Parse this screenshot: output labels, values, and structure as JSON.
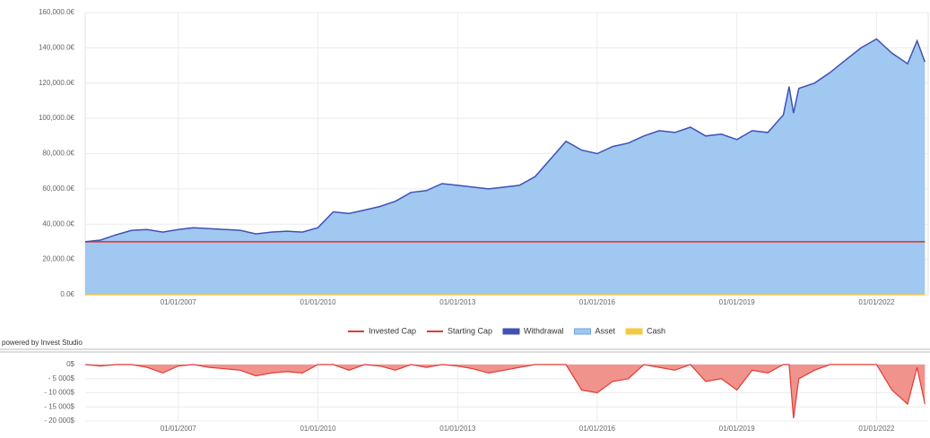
{
  "chart_data": [
    {
      "type": "area",
      "x": [
        "2005-01-01",
        "2005-05-01",
        "2005-09-01",
        "2006-01-01",
        "2006-05-01",
        "2006-09-01",
        "2007-01-01",
        "2007-05-01",
        "2007-09-01",
        "2008-01-01",
        "2008-05-01",
        "2008-09-01",
        "2009-01-01",
        "2009-05-01",
        "2009-09-01",
        "2010-01-01",
        "2010-05-01",
        "2010-09-01",
        "2011-01-01",
        "2011-05-01",
        "2011-09-01",
        "2012-01-01",
        "2012-05-01",
        "2012-09-01",
        "2013-01-01",
        "2013-05-01",
        "2013-09-01",
        "2014-01-01",
        "2014-05-01",
        "2014-09-01",
        "2015-01-01",
        "2015-05-01",
        "2015-09-01",
        "2016-01-01",
        "2016-05-01",
        "2016-09-01",
        "2017-01-01",
        "2017-05-01",
        "2017-09-01",
        "2018-01-01",
        "2018-05-01",
        "2018-09-01",
        "2019-01-01",
        "2019-05-01",
        "2019-09-01",
        "2020-01-01",
        "2020-02-15",
        "2020-03-20",
        "2020-05-01",
        "2020-09-01",
        "2021-01-01",
        "2021-05-01",
        "2021-09-01",
        "2022-01-01",
        "2022-05-01",
        "2022-09-01",
        "2022-11-15",
        "2023-01-15"
      ],
      "xlim": [
        "2005-01-01",
        "2023-02-10"
      ],
      "xticks": [
        {
          "value": "2007-01-01",
          "label": "01/01/2007"
        },
        {
          "value": "2010-01-01",
          "label": "01/01/2010"
        },
        {
          "value": "2013-01-01",
          "label": "01/01/2013"
        },
        {
          "value": "2016-01-01",
          "label": "01/01/2016"
        },
        {
          "value": "2019-01-01",
          "label": "01/01/2019"
        },
        {
          "value": "2022-01-01",
          "label": "01/01/2022"
        }
      ],
      "ylim": [
        0,
        160000
      ],
      "yticks": [
        {
          "value": 0,
          "label": "0.0€"
        },
        {
          "value": 20000,
          "label": "20,000.0€"
        },
        {
          "value": 40000,
          "label": "40,000.0€"
        },
        {
          "value": 60000,
          "label": "60,000.0€"
        },
        {
          "value": 80000,
          "label": "80,000.0€"
        },
        {
          "value": 100000,
          "label": "100,000.0€"
        },
        {
          "value": 120000,
          "label": "120,000.0€"
        },
        {
          "value": 140000,
          "label": "140,000.0€"
        },
        {
          "value": 160000,
          "label": "160,000.0€"
        }
      ],
      "grid": true,
      "legend": "bottom",
      "series": [
        {
          "name": "Invested Cap",
          "color": "#e53935",
          "mark": "line",
          "legend_symbol": "line",
          "values": [
            30000,
            30000,
            30000,
            30000,
            30000,
            30000,
            30000,
            30000,
            30000,
            30000,
            30000,
            30000,
            30000,
            30000,
            30000,
            30000,
            30000,
            30000,
            30000,
            30000,
            30000,
            30000,
            30000,
            30000,
            30000,
            30000,
            30000,
            30000,
            30000,
            30000,
            30000,
            30000,
            30000,
            30000,
            30000,
            30000,
            30000,
            30000,
            30000,
            30000,
            30000,
            30000,
            30000,
            30000,
            30000,
            30000,
            30000,
            30000,
            30000,
            30000,
            30000,
            30000,
            30000,
            30000,
            30000,
            30000,
            30000,
            30000
          ]
        },
        {
          "name": "Starting Cap",
          "color": "#e53935",
          "mark": "line",
          "legend_symbol": "line",
          "values": [
            30000,
            30000,
            30000,
            30000,
            30000,
            30000,
            30000,
            30000,
            30000,
            30000,
            30000,
            30000,
            30000,
            30000,
            30000,
            30000,
            30000,
            30000,
            30000,
            30000,
            30000,
            30000,
            30000,
            30000,
            30000,
            30000,
            30000,
            30000,
            30000,
            30000,
            30000,
            30000,
            30000,
            30000,
            30000,
            30000,
            30000,
            30000,
            30000,
            30000,
            30000,
            30000,
            30000,
            30000,
            30000,
            30000,
            30000,
            30000,
            30000,
            30000,
            30000,
            30000,
            30000,
            30000,
            30000,
            30000,
            30000,
            30000
          ]
        },
        {
          "name": "Withdrawal",
          "color": "#3f51b5",
          "mark": "line",
          "legend_symbol": "box",
          "values": [
            30000,
            31000,
            34000,
            36500,
            37000,
            35500,
            37000,
            38000,
            37500,
            37000,
            36500,
            34500,
            35500,
            36000,
            35500,
            38000,
            47000,
            46000,
            48000,
            50000,
            53000,
            58000,
            59000,
            63000,
            62000,
            61000,
            60000,
            61000,
            62000,
            67000,
            77000,
            87000,
            82000,
            80000,
            84000,
            86000,
            90000,
            93000,
            92000,
            95000,
            90000,
            91000,
            88000,
            93000,
            92000,
            102000,
            118000,
            103000,
            117000,
            120000,
            126000,
            133000,
            140000,
            145000,
            137000,
            131000,
            144000,
            132000
          ]
        },
        {
          "name": "Asset",
          "color": "#a0c8f0",
          "mark": "area",
          "legend_symbol": "box",
          "values": [
            30000,
            31000,
            34000,
            36500,
            37000,
            35500,
            37000,
            38000,
            37500,
            37000,
            36500,
            34500,
            35500,
            36000,
            35500,
            38000,
            47000,
            46000,
            48000,
            50000,
            53000,
            58000,
            59000,
            63000,
            62000,
            61000,
            60000,
            61000,
            62000,
            67000,
            77000,
            87000,
            82000,
            80000,
            84000,
            86000,
            90000,
            93000,
            92000,
            95000,
            90000,
            91000,
            88000,
            93000,
            92000,
            102000,
            118000,
            103000,
            117000,
            120000,
            126000,
            133000,
            140000,
            145000,
            137000,
            131000,
            144000,
            132000
          ]
        },
        {
          "name": "Cash",
          "color": "#f5c842",
          "mark": "line",
          "legend_symbol": "box",
          "values": [
            0,
            0,
            0,
            0,
            0,
            0,
            0,
            0,
            0,
            0,
            0,
            0,
            0,
            0,
            0,
            0,
            0,
            0,
            0,
            0,
            0,
            0,
            0,
            0,
            0,
            0,
            0,
            0,
            0,
            0,
            0,
            0,
            0,
            0,
            0,
            0,
            0,
            0,
            0,
            0,
            0,
            0,
            0,
            0,
            0,
            0,
            0,
            0,
            0,
            0,
            0,
            0,
            0,
            0,
            0,
            0,
            0,
            0
          ]
        }
      ]
    },
    {
      "type": "area",
      "x": [
        "2005-01-01",
        "2005-05-01",
        "2005-09-01",
        "2006-01-01",
        "2006-05-01",
        "2006-09-01",
        "2007-01-01",
        "2007-05-01",
        "2007-09-01",
        "2008-01-01",
        "2008-05-01",
        "2008-09-01",
        "2009-01-01",
        "2009-05-01",
        "2009-09-01",
        "2010-01-01",
        "2010-05-01",
        "2010-09-01",
        "2011-01-01",
        "2011-05-01",
        "2011-09-01",
        "2012-01-01",
        "2012-05-01",
        "2012-09-01",
        "2013-01-01",
        "2013-05-01",
        "2013-09-01",
        "2014-01-01",
        "2014-05-01",
        "2014-09-01",
        "2015-01-01",
        "2015-05-01",
        "2015-09-01",
        "2016-01-01",
        "2016-05-01",
        "2016-09-01",
        "2017-01-01",
        "2017-05-01",
        "2017-09-01",
        "2018-01-01",
        "2018-05-01",
        "2018-09-01",
        "2019-01-01",
        "2019-05-01",
        "2019-09-01",
        "2020-01-01",
        "2020-02-15",
        "2020-03-20",
        "2020-05-01",
        "2020-09-01",
        "2021-01-01",
        "2021-05-01",
        "2021-09-01",
        "2022-01-01",
        "2022-05-01",
        "2022-09-01",
        "2022-11-15",
        "2023-01-15"
      ],
      "xlim": [
        "2005-01-01",
        "2023-02-10"
      ],
      "xticks": [
        {
          "value": "2007-01-01",
          "label": "01/01/2007"
        },
        {
          "value": "2010-01-01",
          "label": "01/01/2010"
        },
        {
          "value": "2013-01-01",
          "label": "01/01/2013"
        },
        {
          "value": "2016-01-01",
          "label": "01/01/2016"
        },
        {
          "value": "2019-01-01",
          "label": "01/01/2019"
        },
        {
          "value": "2022-01-01",
          "label": "01/01/2022"
        }
      ],
      "ylim": [
        -20000,
        0
      ],
      "yticks": [
        {
          "value": 0,
          "label": "0$"
        },
        {
          "value": -5000,
          "label": "- 5 000$"
        },
        {
          "value": -10000,
          "label": "- 10 000$"
        },
        {
          "value": -15000,
          "label": "- 15 000$"
        },
        {
          "value": -20000,
          "label": "- 20 000$"
        }
      ],
      "grid": true,
      "series": [
        {
          "color": "#f0938d",
          "line_color": "#e53935",
          "mark": "area",
          "values": [
            0,
            -500,
            0,
            0,
            -1000,
            -3000,
            -500,
            0,
            -1000,
            -1500,
            -2000,
            -4000,
            -3000,
            -2500,
            -3000,
            0,
            0,
            -2000,
            0,
            -500,
            -2000,
            0,
            -1000,
            0,
            -500,
            -1500,
            -3000,
            -2000,
            -1000,
            0,
            0,
            0,
            -9000,
            -10000,
            -6000,
            -5000,
            0,
            -1000,
            -2000,
            0,
            -6000,
            -5000,
            -9000,
            -2000,
            -3000,
            0,
            0,
            -19000,
            -5000,
            -2000,
            0,
            0,
            0,
            0,
            -9000,
            -14000,
            -1000,
            -14000
          ]
        }
      ]
    }
  ],
  "footer": "powered by Invest Studio"
}
